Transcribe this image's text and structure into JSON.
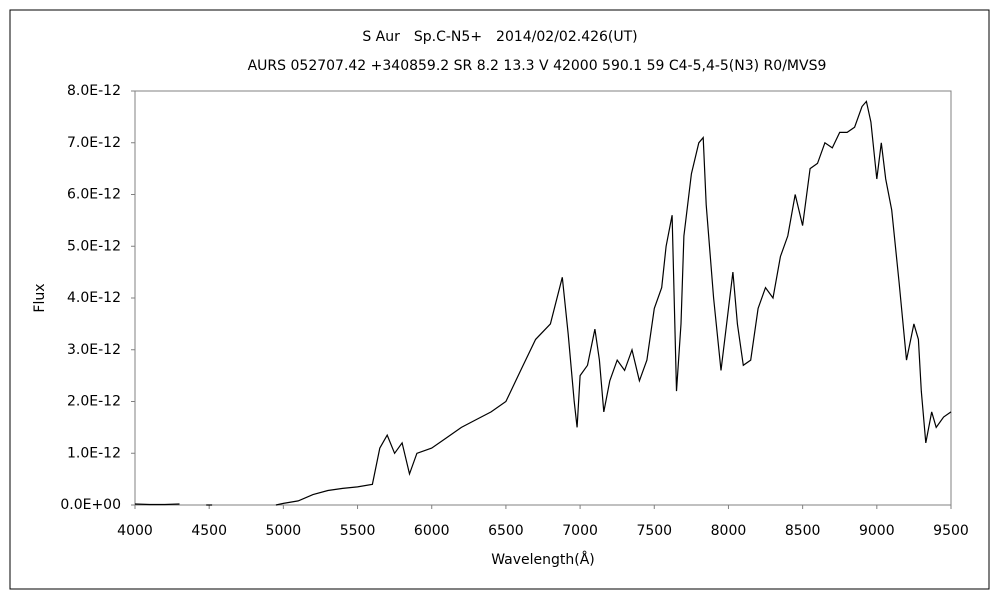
{
  "chart_data": {
    "type": "line",
    "title": "S Aur　Sp.C-N5+　2014/02/02.426(UT)",
    "subtitle": "AURS 052707.42 +340859.2 SR 8.2 13.3 V 42000 590.1 59 C4-5,4-5(N3) R0/MVS9",
    "xlabel": "Wavelength(Å)",
    "ylabel": "Flux",
    "xlim": [
      4000,
      9500
    ],
    "xticks": [
      4000,
      4500,
      5000,
      5500,
      6000,
      6500,
      7000,
      7500,
      8000,
      8500,
      9000,
      9500
    ],
    "ylim": [
      0,
      8e-12
    ],
    "yticks": [
      {
        "value": 0,
        "label": "0.0E+00"
      },
      {
        "value": 1e-12,
        "label": "1.0E-12"
      },
      {
        "value": 2e-12,
        "label": "2.0E-12"
      },
      {
        "value": 3e-12,
        "label": "3.0E-12"
      },
      {
        "value": 4e-12,
        "label": "4.0E-12"
      },
      {
        "value": 5e-12,
        "label": "5.0E-12"
      },
      {
        "value": 6e-12,
        "label": "6.0E-12"
      },
      {
        "value": 7e-12,
        "label": "7.0E-12"
      },
      {
        "value": 8e-12,
        "label": "8.0E-12"
      }
    ],
    "color": "#000000",
    "x": [
      4000,
      4100,
      4200,
      4300,
      4400,
      4480,
      4520,
      4700,
      4950,
      5000,
      5100,
      5200,
      5300,
      5400,
      5500,
      5600,
      5650,
      5700,
      5750,
      5800,
      5850,
      5900,
      6000,
      6100,
      6200,
      6300,
      6400,
      6500,
      6600,
      6700,
      6800,
      6880,
      6920,
      6960,
      6980,
      7000,
      7050,
      7100,
      7130,
      7160,
      7200,
      7250,
      7300,
      7350,
      7400,
      7450,
      7500,
      7550,
      7580,
      7620,
      7650,
      7680,
      7700,
      7750,
      7800,
      7830,
      7850,
      7900,
      7950,
      8000,
      8030,
      8060,
      8100,
      8150,
      8200,
      8250,
      8300,
      8350,
      8400,
      8450,
      8500,
      8550,
      8600,
      8650,
      8700,
      8750,
      8800,
      8850,
      8900,
      8930,
      8960,
      9000,
      9030,
      9060,
      9100,
      9150,
      9200,
      9250,
      9280,
      9300,
      9330,
      9370,
      9400,
      9450,
      9500
    ],
    "values": [
      2e-14,
      1e-14,
      1e-14,
      2e-14,
      null,
      0,
      0,
      null,
      0,
      3e-14,
      8e-14,
      2e-13,
      2.8e-13,
      3.2e-13,
      3.5e-13,
      4e-13,
      1.1e-12,
      1.35e-12,
      1e-12,
      1.2e-12,
      6e-13,
      1e-12,
      1.1e-12,
      1.3e-12,
      1.5e-12,
      1.65e-12,
      1.8e-12,
      2e-12,
      2.6e-12,
      3.2e-12,
      3.5e-12,
      4.4e-12,
      3.3e-12,
      2e-12,
      1.5e-12,
      2.5e-12,
      2.7e-12,
      3.4e-12,
      2.8e-12,
      1.8e-12,
      2.4e-12,
      2.8e-12,
      2.6e-12,
      3e-12,
      2.4e-12,
      2.8e-12,
      3.8e-12,
      4.2e-12,
      5e-12,
      5.6e-12,
      2.2e-12,
      3.5e-12,
      5.2e-12,
      6.4e-12,
      7e-12,
      7.1e-12,
      5.8e-12,
      4e-12,
      2.6e-12,
      3.8e-12,
      4.5e-12,
      3.5e-12,
      2.7e-12,
      2.8e-12,
      3.8e-12,
      4.2e-12,
      4e-12,
      4.8e-12,
      5.2e-12,
      6e-12,
      5.4e-12,
      6.5e-12,
      6.6e-12,
      7e-12,
      6.9e-12,
      7.2e-12,
      7.2e-12,
      7.3e-12,
      7.7e-12,
      7.8e-12,
      7.4e-12,
      6.3e-12,
      7e-12,
      6.3e-12,
      5.7e-12,
      4.3e-12,
      2.8e-12,
      3.5e-12,
      3.2e-12,
      2.2e-12,
      1.2e-12,
      1.8e-12,
      1.5e-12,
      1.7e-12,
      1.8e-12
    ]
  }
}
